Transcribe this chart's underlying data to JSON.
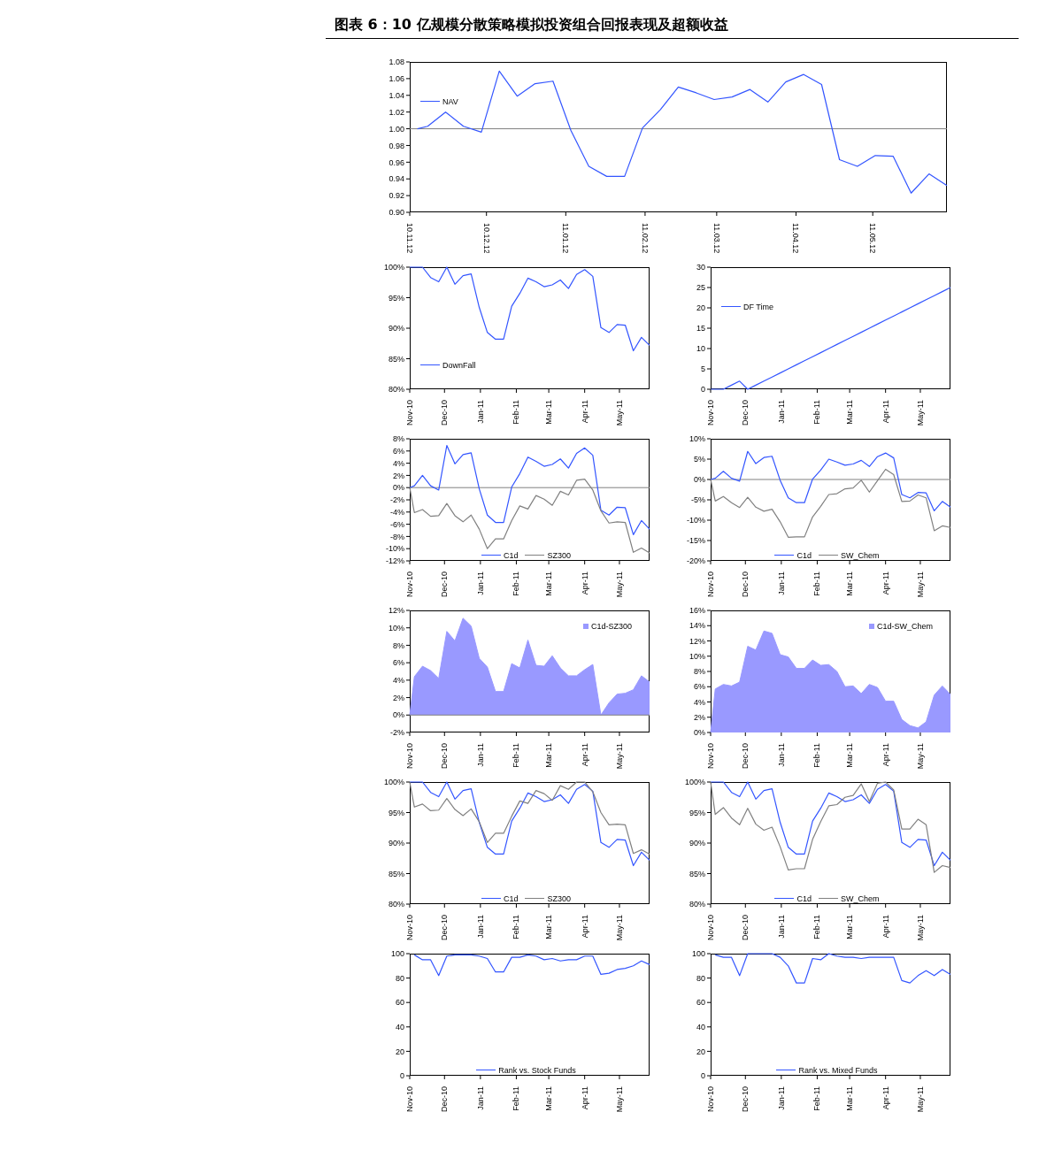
{
  "chart_data": [
    {
      "type": "line",
      "title": "图表 6：10 亿规模分散策略模拟投资组合回报表现及超额收益",
      "x": [
        "2010-11-15",
        "2010-11-19",
        "2010-11-26",
        "2010-12-03",
        "2010-12-10",
        "2010-12-17",
        "2010-12-24",
        "2010-12-31",
        "2011-01-07",
        "2011-01-14",
        "2011-01-21",
        "2011-01-28",
        "2011-02-04",
        "2011-02-11",
        "2011-02-18",
        "2011-02-25",
        "2011-03-04",
        "2011-03-11",
        "2011-03-18",
        "2011-03-25",
        "2011-04-01",
        "2011-04-08",
        "2011-04-15",
        "2011-04-22",
        "2011-04-29",
        "2011-05-06",
        "2011-05-13",
        "2011-05-20",
        "2011-05-27",
        "2011-06-03",
        "2011-06-10"
      ],
      "xlim": [
        "2010-11-12",
        "2011-06-10"
      ],
      "xticks": [
        {
          "value": "2010-11-12",
          "label": "10.11.12"
        },
        {
          "value": "2010-12-12",
          "label": "10.12.12"
        },
        {
          "value": "2011-01-12",
          "label": "11.01.12"
        },
        {
          "value": "2011-02-12",
          "label": "11.02.12"
        },
        {
          "value": "2011-03-12",
          "label": "11.03.12"
        },
        {
          "value": "2011-04-12",
          "label": "11.04.12"
        },
        {
          "value": "2011-05-12",
          "label": "11.05.12"
        }
      ],
      "ylim": [
        0.9,
        1.08
      ],
      "yticks": [
        {
          "value": 0.9,
          "label": "0.90"
        },
        {
          "value": 0.92,
          "label": "0.92"
        },
        {
          "value": 0.94,
          "label": "0.94"
        },
        {
          "value": 0.96,
          "label": "0.96"
        },
        {
          "value": 0.98,
          "label": "0.98"
        },
        {
          "value": 1.0,
          "label": "1.00"
        },
        {
          "value": 1.02,
          "label": "1.02"
        },
        {
          "value": 1.04,
          "label": "1.04"
        },
        {
          "value": 1.06,
          "label": "1.06"
        },
        {
          "value": 1.08,
          "label": "1.08"
        }
      ],
      "ref_lines": [
        {
          "axis": "y",
          "value": 1.0,
          "color": "#808080"
        }
      ],
      "legend": "top left",
      "series": [
        {
          "name": "NAV",
          "color": "#3355ff",
          "values": [
            1.0,
            1.003,
            1.02,
            1.003,
            0.996,
            1.069,
            1.039,
            1.054,
            1.057,
            0.998,
            0.955,
            0.943,
            0.943,
            1.001,
            1.023,
            1.05,
            1.043,
            1.035,
            1.038,
            1.047,
            1.032,
            1.056,
            1.065,
            1.053,
            0.963,
            0.955,
            0.968,
            0.967,
            0.923,
            0.946,
            0.932
          ]
        }
      ]
    },
    {
      "type": "line",
      "x": [
        "2010-11-15",
        "2010-11-19",
        "2010-11-26",
        "2010-12-03",
        "2010-12-10",
        "2010-12-17",
        "2010-12-24",
        "2010-12-31",
        "2011-01-07",
        "2011-01-14",
        "2011-01-21",
        "2011-01-28",
        "2011-02-04",
        "2011-02-11",
        "2011-02-18",
        "2011-02-25",
        "2011-03-04",
        "2011-03-11",
        "2011-03-18",
        "2011-03-25",
        "2011-04-01",
        "2011-04-08",
        "2011-04-15",
        "2011-04-22",
        "2011-04-29",
        "2011-05-06",
        "2011-05-13",
        "2011-05-20",
        "2011-05-27",
        "2011-06-03",
        "2011-06-10"
      ],
      "xlim": [
        "2010-11-15",
        "2011-06-10"
      ],
      "xticks": [
        {
          "value": "2010-11-15",
          "label": "Nov-10"
        },
        {
          "value": "2010-12-15",
          "label": "Dec-10"
        },
        {
          "value": "2011-01-15",
          "label": "Jan-11"
        },
        {
          "value": "2011-02-15",
          "label": "Feb-11"
        },
        {
          "value": "2011-03-15",
          "label": "Mar-11"
        },
        {
          "value": "2011-04-15",
          "label": "Apr-11"
        },
        {
          "value": "2011-05-15",
          "label": "May-11"
        }
      ],
      "ylim": [
        80,
        100
      ],
      "yticks": [
        {
          "value": 80,
          "label": "80%"
        },
        {
          "value": 85,
          "label": "85%"
        },
        {
          "value": 90,
          "label": "90%"
        },
        {
          "value": 95,
          "label": "95%"
        },
        {
          "value": 100,
          "label": "100%"
        }
      ],
      "legend": "bottom left",
      "series": [
        {
          "name": "DownFall",
          "color": "#3355ff",
          "values": [
            100,
            100,
            100,
            98.3,
            97.6,
            100,
            97.2,
            98.6,
            98.9,
            93.4,
            89.3,
            88.2,
            88.2,
            93.6,
            95.7,
            98.2,
            97.6,
            96.8,
            97.1,
            97.9,
            96.5,
            98.8,
            99.6,
            98.5,
            90.1,
            89.3,
            90.6,
            90.5,
            86.3,
            88.5,
            87.2
          ]
        }
      ]
    },
    {
      "type": "line",
      "x": [
        "2010-11-15",
        "2010-11-19",
        "2010-11-26",
        "2010-12-03",
        "2010-12-10",
        "2010-12-17",
        "2010-12-24",
        "2010-12-31",
        "2011-01-07",
        "2011-01-14",
        "2011-01-21",
        "2011-01-28",
        "2011-02-04",
        "2011-02-11",
        "2011-02-18",
        "2011-02-25",
        "2011-03-04",
        "2011-03-11",
        "2011-03-18",
        "2011-03-25",
        "2011-04-01",
        "2011-04-08",
        "2011-04-15",
        "2011-04-22",
        "2011-04-29",
        "2011-05-06",
        "2011-05-13",
        "2011-05-20",
        "2011-05-27",
        "2011-06-03",
        "2011-06-10"
      ],
      "xlim": [
        "2010-11-15",
        "2011-06-10"
      ],
      "xticks": [
        {
          "value": "2010-11-15",
          "label": "Nov-10"
        },
        {
          "value": "2010-12-15",
          "label": "Dec-10"
        },
        {
          "value": "2011-01-15",
          "label": "Jan-11"
        },
        {
          "value": "2011-02-15",
          "label": "Feb-11"
        },
        {
          "value": "2011-03-15",
          "label": "Mar-11"
        },
        {
          "value": "2011-04-15",
          "label": "Apr-11"
        },
        {
          "value": "2011-05-15",
          "label": "May-11"
        }
      ],
      "ylim": [
        0,
        30
      ],
      "yticks": [
        0,
        5,
        10,
        15,
        20,
        25,
        30
      ],
      "legend": "top left",
      "series": [
        {
          "name": "DF Time",
          "color": "#3355ff",
          "values": [
            0,
            0,
            0,
            1,
            2,
            0,
            1,
            2,
            3,
            4,
            5,
            6,
            7,
            8,
            9,
            10,
            11,
            12,
            13,
            14,
            15,
            16,
            17,
            18,
            19,
            20,
            21,
            22,
            23,
            24,
            25
          ]
        }
      ]
    },
    {
      "type": "line",
      "x": [
        "2010-11-15",
        "2010-11-19",
        "2010-11-26",
        "2010-12-03",
        "2010-12-10",
        "2010-12-17",
        "2010-12-24",
        "2010-12-31",
        "2011-01-07",
        "2011-01-14",
        "2011-01-21",
        "2011-01-28",
        "2011-02-04",
        "2011-02-11",
        "2011-02-18",
        "2011-02-25",
        "2011-03-04",
        "2011-03-11",
        "2011-03-18",
        "2011-03-25",
        "2011-04-01",
        "2011-04-08",
        "2011-04-15",
        "2011-04-22",
        "2011-04-29",
        "2011-05-06",
        "2011-05-13",
        "2011-05-20",
        "2011-05-27",
        "2011-06-03",
        "2011-06-10"
      ],
      "xlim": [
        "2010-11-15",
        "2011-06-10"
      ],
      "xticks": [
        {
          "value": "2010-11-15",
          "label": "Nov-10"
        },
        {
          "value": "2010-12-15",
          "label": "Dec-10"
        },
        {
          "value": "2011-01-15",
          "label": "Jan-11"
        },
        {
          "value": "2011-02-15",
          "label": "Feb-11"
        },
        {
          "value": "2011-03-15",
          "label": "Mar-11"
        },
        {
          "value": "2011-04-15",
          "label": "Apr-11"
        },
        {
          "value": "2011-05-15",
          "label": "May-11"
        }
      ],
      "ylim": [
        -12,
        8
      ],
      "yticks": [
        {
          "value": -12,
          "label": "-12%"
        },
        {
          "value": -10,
          "label": "-10%"
        },
        {
          "value": -8,
          "label": "-8%"
        },
        {
          "value": -6,
          "label": "-6%"
        },
        {
          "value": -4,
          "label": "-4%"
        },
        {
          "value": -2,
          "label": "-2%"
        },
        {
          "value": 0,
          "label": "0%"
        },
        {
          "value": 2,
          "label": "2%"
        },
        {
          "value": 4,
          "label": "4%"
        },
        {
          "value": 6,
          "label": "6%"
        },
        {
          "value": 8,
          "label": "8%"
        }
      ],
      "ref_lines": [
        {
          "axis": "y",
          "value": 0,
          "color": "#808080"
        }
      ],
      "legend": "bottom",
      "series": [
        {
          "name": "C1d",
          "color": "#3355ff",
          "values": [
            0,
            0.3,
            2.0,
            0.3,
            -0.4,
            6.9,
            3.9,
            5.4,
            5.7,
            -0.2,
            -4.5,
            -5.7,
            -5.7,
            0.1,
            2.3,
            5.0,
            4.3,
            3.5,
            3.8,
            4.7,
            3.2,
            5.6,
            6.5,
            5.3,
            -3.7,
            -4.5,
            -3.2,
            -3.3,
            -7.7,
            -5.4,
            -6.8
          ]
        },
        {
          "name": "SZ300",
          "color": "#808080",
          "values": [
            0,
            -4.1,
            -3.6,
            -4.7,
            -4.6,
            -2.6,
            -4.6,
            -5.6,
            -4.5,
            -6.8,
            -10.0,
            -8.4,
            -8.4,
            -5.4,
            -3.0,
            -3.5,
            -1.3,
            -1.9,
            -2.9,
            -0.6,
            -1.2,
            1.2,
            1.4,
            -0.4,
            -3.8,
            -5.8,
            -5.6,
            -5.7,
            -10.6,
            -9.9,
            -10.7
          ]
        }
      ]
    },
    {
      "type": "line",
      "x": [
        "2010-11-15",
        "2010-11-19",
        "2010-11-26",
        "2010-12-03",
        "2010-12-10",
        "2010-12-17",
        "2010-12-24",
        "2010-12-31",
        "2011-01-07",
        "2011-01-14",
        "2011-01-21",
        "2011-01-28",
        "2011-02-04",
        "2011-02-11",
        "2011-02-18",
        "2011-02-25",
        "2011-03-04",
        "2011-03-11",
        "2011-03-18",
        "2011-03-25",
        "2011-04-01",
        "2011-04-08",
        "2011-04-15",
        "2011-04-22",
        "2011-04-29",
        "2011-05-06",
        "2011-05-13",
        "2011-05-20",
        "2011-05-27",
        "2011-06-03",
        "2011-06-10"
      ],
      "xlim": [
        "2010-11-15",
        "2011-06-10"
      ],
      "xticks": [
        {
          "value": "2010-11-15",
          "label": "Nov-10"
        },
        {
          "value": "2010-12-15",
          "label": "Dec-10"
        },
        {
          "value": "2011-01-15",
          "label": "Jan-11"
        },
        {
          "value": "2011-02-15",
          "label": "Feb-11"
        },
        {
          "value": "2011-03-15",
          "label": "Mar-11"
        },
        {
          "value": "2011-04-15",
          "label": "Apr-11"
        },
        {
          "value": "2011-05-15",
          "label": "May-11"
        }
      ],
      "ylim": [
        -20,
        10
      ],
      "yticks": [
        {
          "value": -20,
          "label": "-20%"
        },
        {
          "value": -15,
          "label": "-15%"
        },
        {
          "value": -10,
          "label": "-10%"
        },
        {
          "value": -5,
          "label": "-5%"
        },
        {
          "value": 0,
          "label": "0%"
        },
        {
          "value": 5,
          "label": "5%"
        },
        {
          "value": 10,
          "label": "10%"
        }
      ],
      "ref_lines": [
        {
          "axis": "y",
          "value": 0,
          "color": "#808080"
        }
      ],
      "legend": "bottom",
      "series": [
        {
          "name": "C1d",
          "color": "#3355ff",
          "values": [
            0,
            0.3,
            2.0,
            0.3,
            -0.4,
            6.9,
            3.9,
            5.4,
            5.7,
            -0.2,
            -4.5,
            -5.7,
            -5.7,
            0.1,
            2.3,
            5.0,
            4.3,
            3.5,
            3.8,
            4.7,
            3.2,
            5.6,
            6.5,
            5.3,
            -3.7,
            -4.5,
            -3.2,
            -3.3,
            -7.7,
            -5.4,
            -6.8
          ]
        },
        {
          "name": "SW_Chem",
          "color": "#808080",
          "values": [
            0,
            -5.3,
            -4.2,
            -5.7,
            -6.9,
            -4.4,
            -6.8,
            -7.8,
            -7.3,
            -10.4,
            -14.2,
            -14.1,
            -14.1,
            -9.2,
            -6.6,
            -3.7,
            -3.5,
            -2.3,
            -2.1,
            -0.2,
            -3.1,
            -0.3,
            2.5,
            1.2,
            -5.4,
            -5.3,
            -3.8,
            -4.5,
            -12.6,
            -11.4,
            -11.8
          ]
        }
      ]
    },
    {
      "type": "area",
      "x": [
        "2010-11-15",
        "2010-11-19",
        "2010-11-26",
        "2010-12-03",
        "2010-12-10",
        "2010-12-17",
        "2010-12-24",
        "2010-12-31",
        "2011-01-07",
        "2011-01-14",
        "2011-01-21",
        "2011-01-28",
        "2011-02-04",
        "2011-02-11",
        "2011-02-18",
        "2011-02-25",
        "2011-03-04",
        "2011-03-11",
        "2011-03-18",
        "2011-03-25",
        "2011-04-01",
        "2011-04-08",
        "2011-04-15",
        "2011-04-22",
        "2011-04-29",
        "2011-05-06",
        "2011-05-13",
        "2011-05-20",
        "2011-05-27",
        "2011-06-03",
        "2011-06-10"
      ],
      "xlim": [
        "2010-11-15",
        "2011-06-10"
      ],
      "xticks": [
        {
          "value": "2010-11-15",
          "label": "Nov-10"
        },
        {
          "value": "2010-12-15",
          "label": "Dec-10"
        },
        {
          "value": "2011-01-15",
          "label": "Jan-11"
        },
        {
          "value": "2011-02-15",
          "label": "Feb-11"
        },
        {
          "value": "2011-03-15",
          "label": "Mar-11"
        },
        {
          "value": "2011-04-15",
          "label": "Apr-11"
        },
        {
          "value": "2011-05-15",
          "label": "May-11"
        }
      ],
      "ylim": [
        -2,
        12
      ],
      "yticks": [
        {
          "value": -2,
          "label": "-2%"
        },
        {
          "value": 0,
          "label": "0%"
        },
        {
          "value": 2,
          "label": "2%"
        },
        {
          "value": 4,
          "label": "4%"
        },
        {
          "value": 6,
          "label": "6%"
        },
        {
          "value": 8,
          "label": "8%"
        },
        {
          "value": 10,
          "label": "10%"
        },
        {
          "value": 12,
          "label": "12%"
        }
      ],
      "ref_lines": [
        {
          "axis": "y",
          "value": 0,
          "color": "#808080"
        }
      ],
      "legend": "top right",
      "series": [
        {
          "name": "C1d-SZ300",
          "color": "#9999ff",
          "values": [
            0,
            4.4,
            5.6,
            5.1,
            4.2,
            9.6,
            8.5,
            11.1,
            10.2,
            6.5,
            5.5,
            2.7,
            2.7,
            5.9,
            5.4,
            8.6,
            5.7,
            5.6,
            6.8,
            5.4,
            4.5,
            4.5,
            5.2,
            5.8,
            0,
            1.4,
            2.4,
            2.5,
            2.9,
            4.5,
            3.8
          ]
        }
      ]
    },
    {
      "type": "area",
      "x": [
        "2010-11-15",
        "2010-11-19",
        "2010-11-26",
        "2010-12-03",
        "2010-12-10",
        "2010-12-17",
        "2010-12-24",
        "2010-12-31",
        "2011-01-07",
        "2011-01-14",
        "2011-01-21",
        "2011-01-28",
        "2011-02-04",
        "2011-02-11",
        "2011-02-18",
        "2011-02-25",
        "2011-03-04",
        "2011-03-11",
        "2011-03-18",
        "2011-03-25",
        "2011-04-01",
        "2011-04-08",
        "2011-04-15",
        "2011-04-22",
        "2011-04-29",
        "2011-05-06",
        "2011-05-13",
        "2011-05-20",
        "2011-05-27",
        "2011-06-03",
        "2011-06-10"
      ],
      "xlim": [
        "2010-11-15",
        "2011-06-10"
      ],
      "xticks": [
        {
          "value": "2010-11-15",
          "label": "Nov-10"
        },
        {
          "value": "2010-12-15",
          "label": "Dec-10"
        },
        {
          "value": "2011-01-15",
          "label": "Jan-11"
        },
        {
          "value": "2011-02-15",
          "label": "Feb-11"
        },
        {
          "value": "2011-03-15",
          "label": "Mar-11"
        },
        {
          "value": "2011-04-15",
          "label": "Apr-11"
        },
        {
          "value": "2011-05-15",
          "label": "May-11"
        }
      ],
      "ylim": [
        0,
        16
      ],
      "yticks": [
        {
          "value": 0,
          "label": "0%"
        },
        {
          "value": 2,
          "label": "2%"
        },
        {
          "value": 4,
          "label": "4%"
        },
        {
          "value": 6,
          "label": "6%"
        },
        {
          "value": 8,
          "label": "8%"
        },
        {
          "value": 10,
          "label": "10%"
        },
        {
          "value": 12,
          "label": "12%"
        },
        {
          "value": 14,
          "label": "14%"
        },
        {
          "value": 16,
          "label": "16%"
        }
      ],
      "legend": "top right",
      "series": [
        {
          "name": "C1d-SW_Chem",
          "color": "#9999ff",
          "values": [
            0,
            5.7,
            6.3,
            6.1,
            6.6,
            11.3,
            10.8,
            13.3,
            13.0,
            10.2,
            9.9,
            8.4,
            8.4,
            9.5,
            8.8,
            8.9,
            8.0,
            6.0,
            6.1,
            5.1,
            6.3,
            5.9,
            4.1,
            4.1,
            1.7,
            0.9,
            0.6,
            1.4,
            4.9,
            6.1,
            5.0
          ]
        }
      ]
    },
    {
      "type": "line",
      "x": [
        "2010-11-15",
        "2010-11-19",
        "2010-11-26",
        "2010-12-03",
        "2010-12-10",
        "2010-12-17",
        "2010-12-24",
        "2010-12-31",
        "2011-01-07",
        "2011-01-14",
        "2011-01-21",
        "2011-01-28",
        "2011-02-04",
        "2011-02-11",
        "2011-02-18",
        "2011-02-25",
        "2011-03-04",
        "2011-03-11",
        "2011-03-18",
        "2011-03-25",
        "2011-04-01",
        "2011-04-08",
        "2011-04-15",
        "2011-04-22",
        "2011-04-29",
        "2011-05-06",
        "2011-05-13",
        "2011-05-20",
        "2011-05-27",
        "2011-06-03",
        "2011-06-10"
      ],
      "xlim": [
        "2010-11-15",
        "2011-06-10"
      ],
      "xticks": [
        {
          "value": "2010-11-15",
          "label": "Nov-10"
        },
        {
          "value": "2010-12-15",
          "label": "Dec-10"
        },
        {
          "value": "2011-01-15",
          "label": "Jan-11"
        },
        {
          "value": "2011-02-15",
          "label": "Feb-11"
        },
        {
          "value": "2011-03-15",
          "label": "Mar-11"
        },
        {
          "value": "2011-04-15",
          "label": "Apr-11"
        },
        {
          "value": "2011-05-15",
          "label": "May-11"
        }
      ],
      "ylim": [
        80,
        100
      ],
      "yticks": [
        {
          "value": 80,
          "label": "80%"
        },
        {
          "value": 85,
          "label": "85%"
        },
        {
          "value": 90,
          "label": "90%"
        },
        {
          "value": 95,
          "label": "95%"
        },
        {
          "value": 100,
          "label": "100%"
        }
      ],
      "legend": "bottom",
      "series": [
        {
          "name": "C1d",
          "color": "#3355ff",
          "values": [
            100,
            100,
            100,
            98.3,
            97.6,
            100,
            97.2,
            98.6,
            98.9,
            93.4,
            89.3,
            88.2,
            88.2,
            93.6,
            95.7,
            98.2,
            97.6,
            96.8,
            97.1,
            97.9,
            96.5,
            98.8,
            99.6,
            98.5,
            90.1,
            89.3,
            90.6,
            90.5,
            86.3,
            88.5,
            87.2
          ]
        },
        {
          "name": "SZ300",
          "color": "#808080",
          "values": [
            100,
            95.9,
            96.4,
            95.3,
            95.4,
            97.3,
            95.5,
            94.5,
            95.6,
            93.5,
            90.1,
            91.6,
            91.6,
            94.4,
            96.9,
            96.5,
            98.6,
            98.1,
            97.0,
            99.4,
            98.8,
            100,
            100,
            98.4,
            95.0,
            93.0,
            93.1,
            93.0,
            88.3,
            88.9,
            88.2
          ]
        }
      ]
    },
    {
      "type": "line",
      "x": [
        "2010-11-15",
        "2010-11-19",
        "2010-11-26",
        "2010-12-03",
        "2010-12-10",
        "2010-12-17",
        "2010-12-24",
        "2010-12-31",
        "2011-01-07",
        "2011-01-14",
        "2011-01-21",
        "2011-01-28",
        "2011-02-04",
        "2011-02-11",
        "2011-02-18",
        "2011-02-25",
        "2011-03-04",
        "2011-03-11",
        "2011-03-18",
        "2011-03-25",
        "2011-04-01",
        "2011-04-08",
        "2011-04-15",
        "2011-04-22",
        "2011-04-29",
        "2011-05-06",
        "2011-05-13",
        "2011-05-20",
        "2011-05-27",
        "2011-06-03",
        "2011-06-10"
      ],
      "xlim": [
        "2010-11-15",
        "2011-06-10"
      ],
      "xticks": [
        {
          "value": "2010-11-15",
          "label": "Nov-10"
        },
        {
          "value": "2010-12-15",
          "label": "Dec-10"
        },
        {
          "value": "2011-01-15",
          "label": "Jan-11"
        },
        {
          "value": "2011-02-15",
          "label": "Feb-11"
        },
        {
          "value": "2011-03-15",
          "label": "Mar-11"
        },
        {
          "value": "2011-04-15",
          "label": "Apr-11"
        },
        {
          "value": "2011-05-15",
          "label": "May-11"
        }
      ],
      "ylim": [
        80,
        100
      ],
      "yticks": [
        {
          "value": 80,
          "label": "80%"
        },
        {
          "value": 85,
          "label": "85%"
        },
        {
          "value": 90,
          "label": "90%"
        },
        {
          "value": 95,
          "label": "95%"
        },
        {
          "value": 100,
          "label": "100%"
        }
      ],
      "legend": "bottom",
      "series": [
        {
          "name": "C1d",
          "color": "#3355ff",
          "values": [
            100,
            100,
            100,
            98.3,
            97.6,
            100,
            97.2,
            98.6,
            98.9,
            93.4,
            89.3,
            88.2,
            88.2,
            93.6,
            95.7,
            98.2,
            97.6,
            96.8,
            97.1,
            97.9,
            96.5,
            98.8,
            99.6,
            98.5,
            90.1,
            89.3,
            90.6,
            90.5,
            86.3,
            88.5,
            87.2
          ]
        },
        {
          "name": "SW_Chem",
          "color": "#808080",
          "values": [
            100,
            94.7,
            95.8,
            94.1,
            93.0,
            95.7,
            93.1,
            92.1,
            92.6,
            89.4,
            85.6,
            85.8,
            85.8,
            90.6,
            93.5,
            96.1,
            96.3,
            97.5,
            97.8,
            99.7,
            96.8,
            99.8,
            100,
            98.7,
            92.3,
            92.3,
            93.9,
            93.0,
            85.2,
            86.3,
            86.0
          ]
        }
      ]
    },
    {
      "type": "line",
      "xlim": [
        "2010-11-15",
        "2011-06-10"
      ],
      "xticks": [
        {
          "value": "2010-11-15",
          "label": "Nov-10"
        },
        {
          "value": "2010-12-15",
          "label": "Dec-10"
        },
        {
          "value": "2011-01-15",
          "label": "Jan-11"
        },
        {
          "value": "2011-02-15",
          "label": "Feb-11"
        },
        {
          "value": "2011-03-15",
          "label": "Mar-11"
        },
        {
          "value": "2011-04-15",
          "label": "Apr-11"
        },
        {
          "value": "2011-05-15",
          "label": "May-11"
        }
      ],
      "ylim": [
        0,
        100
      ],
      "yticks": [
        0,
        20,
        40,
        60,
        80,
        100
      ],
      "legend": "bottom",
      "series": [
        {
          "name": "Rank vs. Stock Funds",
          "color": "#3355ff",
          "x": [
            "2010-11-19",
            "2010-11-26",
            "2010-12-03",
            "2010-12-10",
            "2010-12-17",
            "2010-12-24",
            "2010-12-31",
            "2011-01-07",
            "2011-01-14",
            "2011-01-21",
            "2011-01-28",
            "2011-02-04",
            "2011-02-11",
            "2011-02-18",
            "2011-02-25",
            "2011-03-04",
            "2011-03-11",
            "2011-03-18",
            "2011-03-25",
            "2011-04-01",
            "2011-04-08",
            "2011-04-15",
            "2011-04-22",
            "2011-04-29",
            "2011-05-06",
            "2011-05-13",
            "2011-05-20",
            "2011-05-27",
            "2011-06-03",
            "2011-06-10"
          ],
          "values": [
            99,
            95,
            95,
            82,
            98,
            99,
            99,
            99,
            98,
            96,
            85,
            85,
            97,
            97,
            99,
            98,
            95,
            96,
            94,
            95,
            95,
            98,
            98,
            83,
            84,
            87,
            88,
            90,
            94,
            91
          ]
        }
      ]
    },
    {
      "type": "line",
      "xlim": [
        "2010-11-15",
        "2011-06-10"
      ],
      "xticks": [
        {
          "value": "2010-11-15",
          "label": "Nov-10"
        },
        {
          "value": "2010-12-15",
          "label": "Dec-10"
        },
        {
          "value": "2011-01-15",
          "label": "Jan-11"
        },
        {
          "value": "2011-02-15",
          "label": "Feb-11"
        },
        {
          "value": "2011-03-15",
          "label": "Mar-11"
        },
        {
          "value": "2011-04-15",
          "label": "Apr-11"
        },
        {
          "value": "2011-05-15",
          "label": "May-11"
        }
      ],
      "ylim": [
        0,
        100
      ],
      "yticks": [
        0,
        20,
        40,
        60,
        80,
        100
      ],
      "legend": "bottom",
      "series": [
        {
          "name": "Rank vs. Mixed Funds",
          "color": "#3355ff",
          "x": [
            "2010-11-19",
            "2010-11-26",
            "2010-12-03",
            "2010-12-10",
            "2010-12-17",
            "2010-12-24",
            "2010-12-31",
            "2011-01-07",
            "2011-01-14",
            "2011-01-21",
            "2011-01-28",
            "2011-02-04",
            "2011-02-11",
            "2011-02-18",
            "2011-02-25",
            "2011-03-04",
            "2011-03-11",
            "2011-03-18",
            "2011-03-25",
            "2011-04-01",
            "2011-04-08",
            "2011-04-15",
            "2011-04-22",
            "2011-04-29",
            "2011-05-06",
            "2011-05-13",
            "2011-05-20",
            "2011-05-27",
            "2011-06-03",
            "2011-06-10"
          ],
          "values": [
            99,
            97,
            97,
            82,
            100,
            100,
            100,
            100,
            97,
            90,
            76,
            76,
            96,
            95,
            100,
            98,
            97,
            97,
            96,
            97,
            97,
            97,
            97,
            78,
            76,
            82,
            86,
            82,
            87,
            83
          ]
        }
      ]
    }
  ]
}
